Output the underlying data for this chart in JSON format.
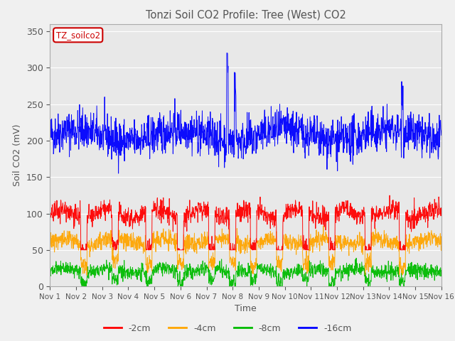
{
  "title": "Tonzi Soil CO2 Profile: Tree (West) CO2",
  "ylabel": "Soil CO2 (mV)",
  "xlabel": "Time",
  "legend_label": "TZ_soilco2",
  "xticklabels": [
    "Nov 1",
    "Nov 2",
    "Nov 3",
    "Nov 4",
    "Nov 5",
    "Nov 6",
    "Nov 7",
    "Nov 8",
    "Nov 9",
    "Nov 10",
    "Nov 11",
    "Nov 12",
    "Nov 13",
    "Nov 14",
    "Nov 15",
    "Nov 16"
  ],
  "ylim": [
    0,
    360
  ],
  "yticks": [
    0,
    50,
    100,
    150,
    200,
    250,
    300,
    350
  ],
  "colors": {
    "-2cm": "#ff0000",
    "-4cm": "#ffa500",
    "-8cm": "#00bb00",
    "-16cm": "#0000ff"
  },
  "n_points": 1500,
  "background_color": "#f0f0f0",
  "plot_bg_color": "#e8e8e8",
  "title_color": "#555555",
  "axis_label_color": "#555555",
  "tick_label_color": "#555555"
}
